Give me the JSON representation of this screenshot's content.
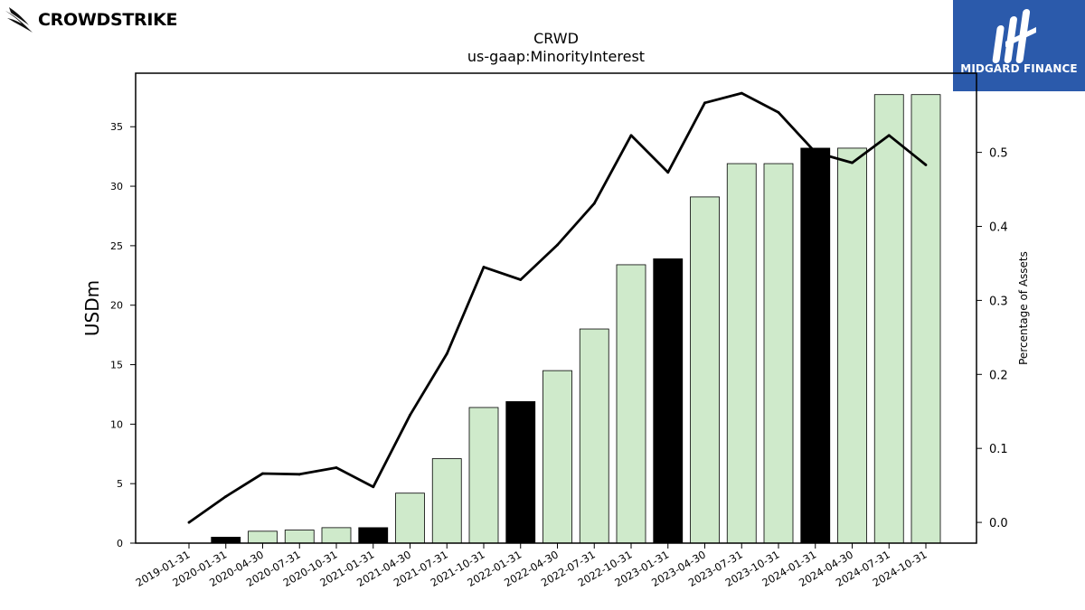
{
  "logos": {
    "left": {
      "text": "CROWDSTRIKE",
      "icon": "falcon-icon"
    },
    "right": {
      "text": "MIDGARD FINANCE",
      "icon": "midgard-m-icon",
      "background": "#2b5aab"
    }
  },
  "chart_data": {
    "type": "bar",
    "title": "CRWD",
    "subtitle": "us-gaap:MinorityInterest",
    "ylabel": "USDm",
    "y2label": "Percentage of Assets",
    "categories": [
      "2019-01-31",
      "2020-01-31",
      "2020-04-30",
      "2020-07-31",
      "2020-10-31",
      "2021-01-31",
      "2021-04-30",
      "2021-07-31",
      "2021-10-31",
      "2022-01-31",
      "2022-04-30",
      "2022-07-31",
      "2022-10-31",
      "2023-01-31",
      "2023-04-30",
      "2023-07-31",
      "2023-10-31",
      "2024-01-31",
      "2024-04-30",
      "2024-07-31",
      "2024-10-31"
    ],
    "series": [
      {
        "type": "bar",
        "values": [
          0,
          0.5,
          1.0,
          1.1,
          1.3,
          1.3,
          4.2,
          7.1,
          11.4,
          11.9,
          14.5,
          18.0,
          23.4,
          23.9,
          29.1,
          31.9,
          31.9,
          33.2,
          33.2,
          37.7,
          37.7
        ],
        "highlight": [
          false,
          true,
          false,
          false,
          false,
          true,
          false,
          false,
          false,
          true,
          false,
          false,
          false,
          true,
          false,
          false,
          false,
          true,
          false,
          false,
          false
        ],
        "color": "#cfeacb",
        "highlight_color": "#000000"
      },
      {
        "type": "line",
        "axis": "right",
        "values": [
          0.0,
          0.035,
          0.066,
          0.065,
          0.074,
          0.048,
          0.145,
          0.228,
          0.345,
          0.328,
          0.375,
          0.431,
          0.523,
          0.473,
          0.567,
          0.58,
          0.554,
          0.5,
          0.486,
          0.523,
          0.483
        ],
        "color": "#000000"
      }
    ],
    "ylim": [
      0,
      39.5
    ],
    "yticks": [
      0,
      5,
      10,
      15,
      20,
      25,
      30,
      35
    ],
    "y2lim": [
      -0.028,
      0.607
    ],
    "y2ticks": [
      0.0,
      0.1,
      0.2,
      0.3,
      0.4,
      0.5
    ],
    "grid": false
  }
}
